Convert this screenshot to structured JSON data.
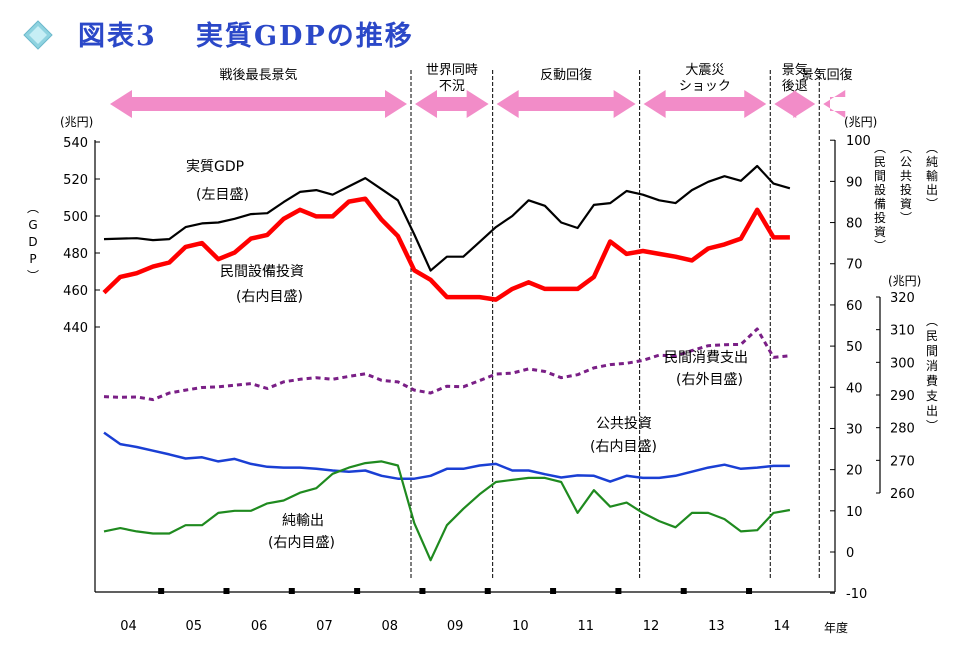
{
  "title": {
    "prefix": "図表3",
    "text": "実質GDPの推移",
    "colors": {
      "text": "#2b48c8",
      "diamond": "#8fd3e0"
    }
  },
  "phases": [
    {
      "label": "戦後最長景気",
      "from": 0,
      "to": 19,
      "arrow": "both"
    },
    {
      "label": "世界同時不況",
      "lines": [
        "世界同時",
        "不況"
      ],
      "from": 19,
      "to": 24,
      "arrow": "both"
    },
    {
      "label": "反動回復",
      "from": 24,
      "to": 33,
      "arrow": "both"
    },
    {
      "label": "大震災ショック",
      "lines": [
        "大震災",
        "ショック"
      ],
      "from": 33,
      "to": 41,
      "arrow": "both"
    },
    {
      "label": "景気後退",
      "lines": [
        "景気",
        "後退"
      ],
      "from": 41,
      "to": 44,
      "arrow": "both"
    },
    {
      "label": "景気回復",
      "from": 44,
      "to": 53,
      "arrow": "left"
    }
  ],
  "arrow_color": "#f28cc8",
  "chart_data": {
    "type": "line",
    "x_label": "年度",
    "x_ticks": [
      "04",
      "05",
      "06",
      "07",
      "08",
      "09",
      "10",
      "11",
      "12",
      "13",
      "14"
    ],
    "quarters_per_year": 4,
    "first_year_label": "04",
    "axes": {
      "gdp": {
        "unit": "(兆円)",
        "label": "(GDP)",
        "range": [
          440,
          540
        ],
        "ticks": [
          440,
          460,
          480,
          500,
          520,
          540
        ]
      },
      "right_inner": {
        "unit": "(兆円)",
        "range": [
          -10,
          100
        ],
        "ticks": [
          -10,
          0,
          10,
          20,
          30,
          40,
          50,
          60,
          70,
          80,
          90,
          100
        ],
        "labels": [
          "(民間設備投資)",
          "(公共投資)",
          "(純輸出)"
        ]
      },
      "right_outer": {
        "unit": "(兆円)",
        "range": [
          260,
          320
        ],
        "ticks": [
          260,
          270,
          280,
          290,
          300,
          310,
          320
        ],
        "labels": [
          "(民間消費支出)"
        ]
      }
    },
    "series": [
      {
        "name": "実質GDP",
        "note": "(左目盛)",
        "axis": "gdp",
        "color": "#000000",
        "dash": "",
        "width": 2.2,
        "values": [
          487.5,
          487.8,
          488.0,
          487.0,
          487.5,
          494.0,
          496.0,
          496.5,
          498.5,
          501.0,
          501.5,
          507.5,
          513.0,
          514.0,
          511.5,
          516.0,
          520.5,
          514.5,
          508.5,
          490.0,
          470.5,
          478.0,
          478.0,
          486.0,
          494.0,
          500.0,
          508.5,
          505.5,
          496.5,
          493.5,
          506.0,
          507.0,
          513.5,
          511.5,
          508.5,
          507.0,
          514.0,
          518.5,
          521.5,
          519.0,
          527.0,
          517.5,
          515.0
        ]
      },
      {
        "name": "民間設備投資",
        "note": "(右内目盛)",
        "axis": "right_inner",
        "color": "#ff0000",
        "dash": "",
        "width": 4.5,
        "values": [
          63.0,
          66.8,
          67.7,
          69.3,
          70.3,
          74.1,
          75.0,
          71.1,
          72.7,
          76.1,
          77.0,
          80.9,
          83.1,
          81.5,
          81.5,
          85.1,
          85.8,
          80.7,
          76.7,
          68.4,
          66.1,
          61.9,
          61.9,
          61.9,
          61.3,
          63.9,
          65.5,
          63.9,
          63.9,
          63.9,
          66.8,
          75.4,
          72.4,
          73.1,
          72.4,
          71.7,
          70.8,
          73.7,
          74.7,
          76.1,
          83.1,
          76.4,
          76.4
        ]
      },
      {
        "name": "民間消費支出",
        "note": "(右外目盛)",
        "axis": "right_outer",
        "color": "#7a1f86",
        "dash": "5,4",
        "width": 3,
        "values": [
          289.5,
          289.3,
          289.4,
          288.6,
          290.6,
          291.5,
          292.3,
          292.5,
          293.0,
          293.5,
          292.0,
          294.0,
          294.8,
          295.3,
          294.8,
          295.7,
          296.5,
          294.5,
          294.0,
          291.5,
          290.6,
          292.7,
          292.5,
          294.4,
          296.4,
          296.7,
          298.0,
          297.2,
          295.3,
          296.2,
          298.3,
          299.3,
          299.7,
          300.6,
          302.2,
          301.9,
          303.6,
          305.1,
          305.4,
          305.5,
          310.2,
          301.5,
          302.0
        ]
      },
      {
        "name": "公共投資",
        "note": "(右内目盛)",
        "axis": "right_inner",
        "color": "#1a3fd4",
        "dash": "",
        "width": 2.5,
        "values": [
          29.0,
          26.2,
          25.5,
          24.6,
          23.7,
          22.7,
          23.0,
          22.0,
          22.6,
          21.4,
          20.7,
          20.5,
          20.5,
          20.2,
          19.8,
          19.5,
          19.8,
          18.5,
          17.8,
          17.8,
          18.5,
          20.2,
          20.2,
          21.0,
          21.4,
          19.8,
          19.8,
          18.9,
          18.1,
          18.6,
          18.5,
          17.1,
          18.5,
          18.0,
          18.0,
          18.5,
          19.5,
          20.5,
          21.2,
          20.2,
          20.5,
          20.9,
          20.9
        ]
      },
      {
        "name": "純輸出",
        "note": "(右内目盛)",
        "axis": "right_inner",
        "color": "#1f8a1f",
        "dash": "",
        "width": 2.2,
        "values": [
          5.0,
          5.8,
          5.0,
          4.5,
          4.5,
          6.5,
          6.5,
          9.5,
          10.0,
          10.0,
          11.8,
          12.5,
          14.4,
          15.5,
          19.0,
          20.5,
          21.6,
          22.0,
          21.0,
          7.0,
          -2.0,
          6.5,
          10.5,
          14.0,
          17.0,
          17.5,
          18.0,
          18.0,
          17.0,
          9.5,
          15.0,
          11.0,
          12.0,
          9.5,
          7.5,
          6.0,
          9.5,
          9.5,
          8.0,
          5.0,
          5.3,
          9.5,
          10.2
        ]
      }
    ],
    "ylim_note": "right_outer axis shares the same vertical extent 260-320 over lower portion"
  }
}
